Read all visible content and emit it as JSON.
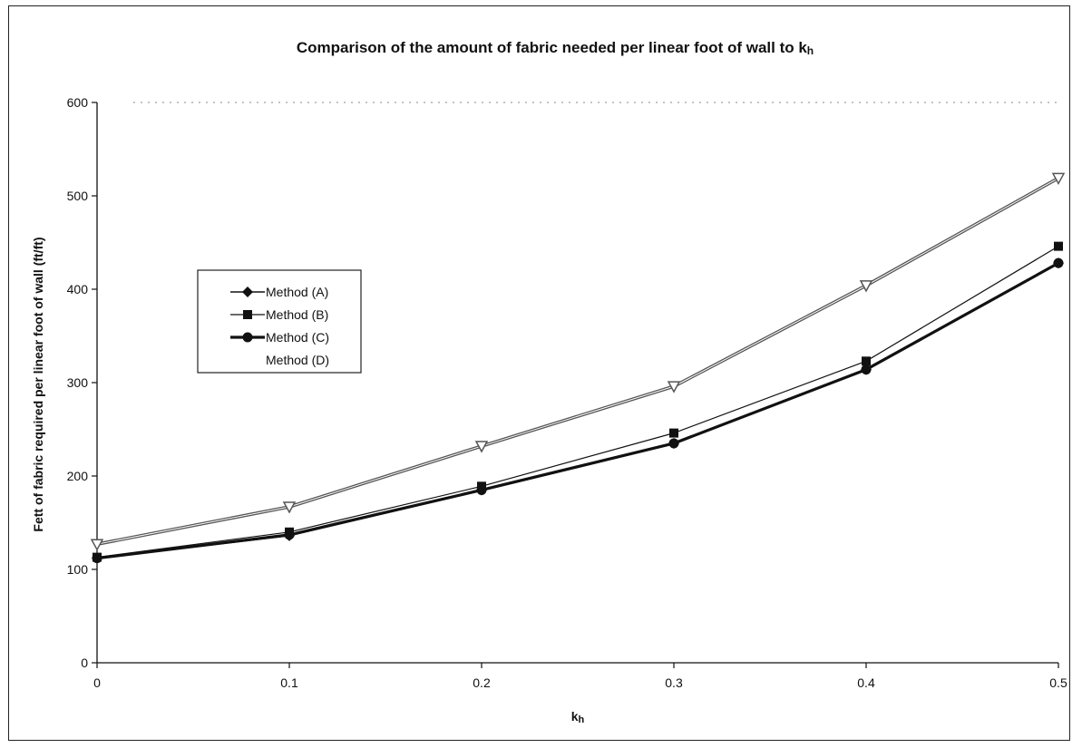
{
  "chart_data": {
    "type": "line",
    "title": "Comparison of the amount of fabric needed per linear foot of wall to k",
    "title_subscript": "h",
    "xlabel": "k",
    "xlabel_subscript": "h",
    "ylabel": "Fett of fabric required per linear foot of wall (ft/ft)",
    "x": [
      0,
      0.1,
      0.2,
      0.3,
      0.4,
      0.5
    ],
    "x_ticks": [
      "0",
      "0.1",
      "0.2",
      "0.3",
      "0.4",
      "0.5"
    ],
    "y_ticks": [
      "0",
      "100",
      "200",
      "300",
      "400",
      "500",
      "600"
    ],
    "xlim": [
      0,
      0.5
    ],
    "ylim": [
      0,
      600
    ],
    "grid": false,
    "legend_position": "left",
    "series": [
      {
        "name": "Method (A)",
        "values": [
          112,
          136,
          185,
          235,
          314,
          428
        ],
        "marker": "diamond",
        "color": "#111111",
        "stroke_width": 1.5
      },
      {
        "name": "Method (B)",
        "values": [
          113,
          140,
          189,
          246,
          323,
          446
        ],
        "marker": "square",
        "color": "#111111",
        "stroke_width": 1.2
      },
      {
        "name": "Method (C)",
        "values": [
          112,
          137,
          185,
          235,
          314,
          428
        ],
        "marker": "circle",
        "color": "#111111",
        "stroke_width": 3.2
      },
      {
        "name": "Method (D)",
        "values": [
          127,
          167,
          232,
          296,
          404,
          519
        ],
        "marker": "triangle",
        "color": "#555555",
        "stroke_width": 3.6
      }
    ]
  }
}
